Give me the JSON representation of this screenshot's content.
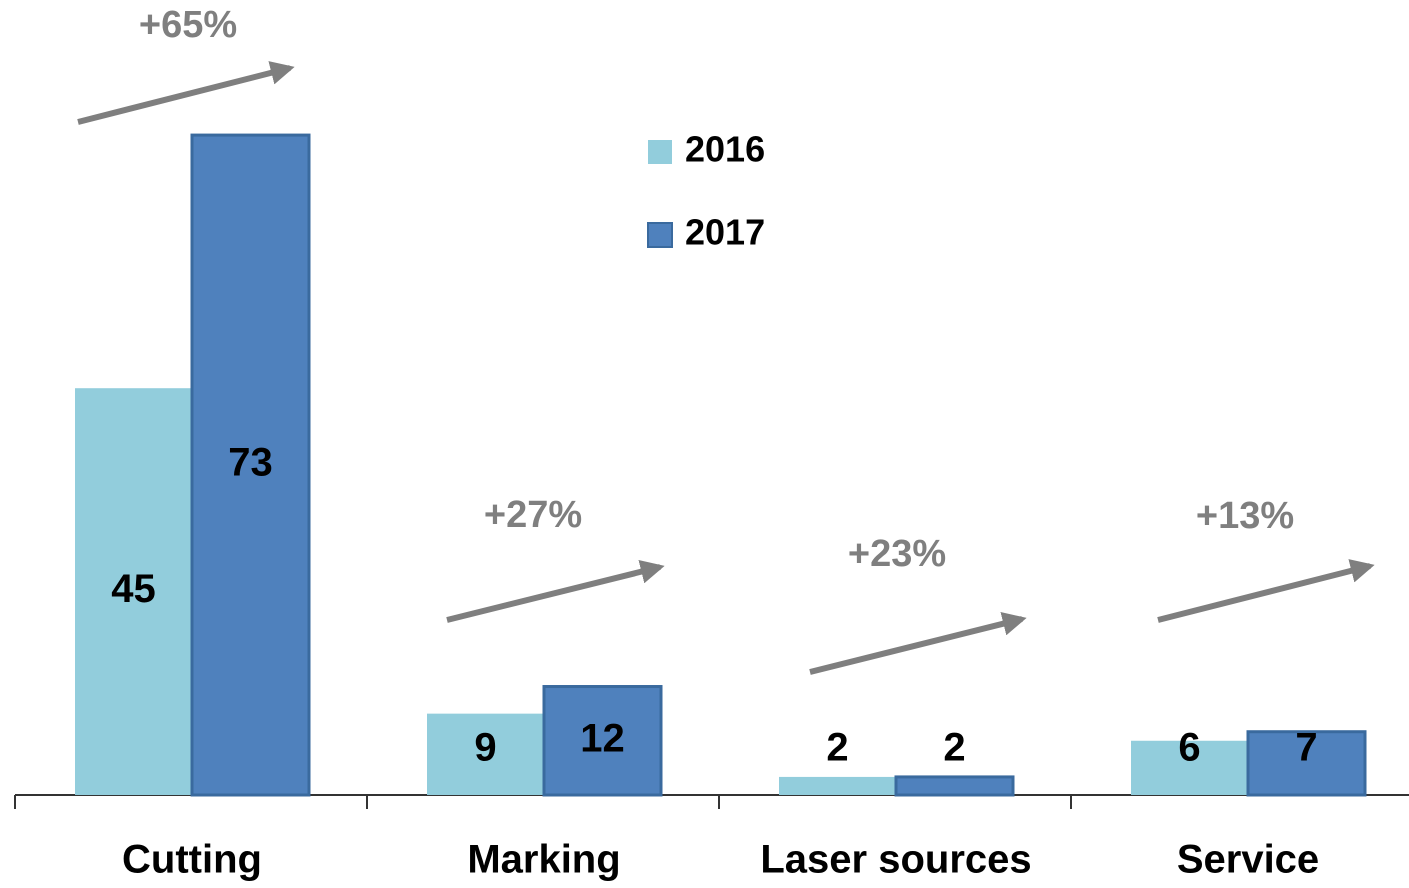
{
  "chart_data": {
    "type": "bar",
    "categories": [
      "Cutting",
      "Marking",
      "Laser sources",
      "Service"
    ],
    "series": [
      {
        "name": "2016",
        "color": "#92cddc",
        "values": [
          45,
          9,
          2,
          6
        ]
      },
      {
        "name": "2017",
        "color": "#4f81bd",
        "values": [
          73,
          12,
          2,
          7
        ]
      }
    ],
    "annotations": [
      "+65%",
      "+27%",
      "+23%",
      "+13%"
    ],
    "legend": "top-center"
  }
}
